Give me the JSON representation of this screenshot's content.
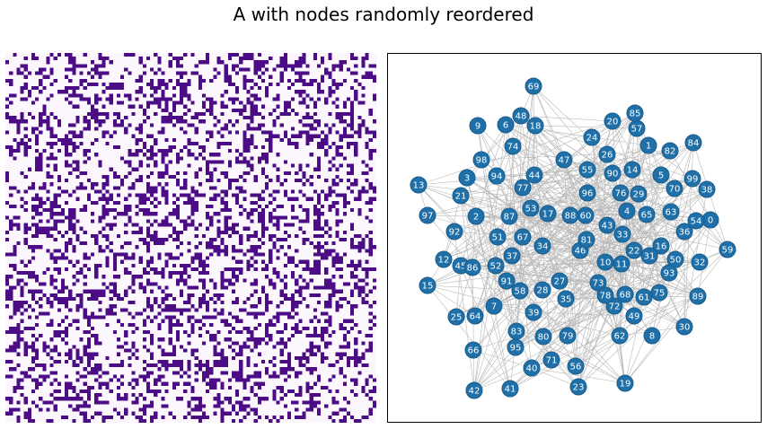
{
  "figure": {
    "title": "A with nodes randomly reordered",
    "colors": {
      "matrix_on": "#4b0c86",
      "matrix_off": "#fbf7fc",
      "node_fill": "#1f6fa8",
      "node_stroke": "#1a5d8c",
      "node_label": "#ffffff",
      "edge": "#000000"
    }
  },
  "chart_data": [
    {
      "type": "heatmap",
      "title": "",
      "rows": 100,
      "cols": 100,
      "values": "binary adjacency matrix (0/1), symmetric",
      "colormap": [
        "#fbf7fc",
        "#4b0c86"
      ],
      "axes": "off"
    },
    {
      "type": "network",
      "title": "",
      "node_labels": [
        "0",
        "1",
        "2",
        "3",
        "4",
        "5",
        "6",
        "7",
        "8",
        "9",
        "10",
        "11",
        "12",
        "13",
        "14",
        "15",
        "16",
        "17",
        "18",
        "19",
        "20",
        "21",
        "22",
        "23",
        "24",
        "25",
        "26",
        "27",
        "28",
        "29",
        "30",
        "31",
        "32",
        "33",
        "34",
        "35",
        "36",
        "37",
        "38",
        "39",
        "40",
        "41",
        "42",
        "43",
        "44",
        "45",
        "46",
        "47",
        "48",
        "49",
        "50",
        "51",
        "52",
        "53",
        "54",
        "55",
        "56",
        "57",
        "58",
        "59",
        "60",
        "61",
        "62",
        "63",
        "64",
        "65",
        "66",
        "67",
        "68",
        "69",
        "70",
        "71",
        "72",
        "73",
        "74",
        "75",
        "76",
        "77",
        "78",
        "79",
        "80",
        "81",
        "82",
        "83",
        "84",
        "85",
        "86",
        "87",
        "88",
        "89",
        "90",
        "91",
        "92",
        "93",
        "94",
        "95",
        "96",
        "97",
        "98",
        "99"
      ],
      "node_count": 100,
      "axes": "frame only"
    }
  ]
}
